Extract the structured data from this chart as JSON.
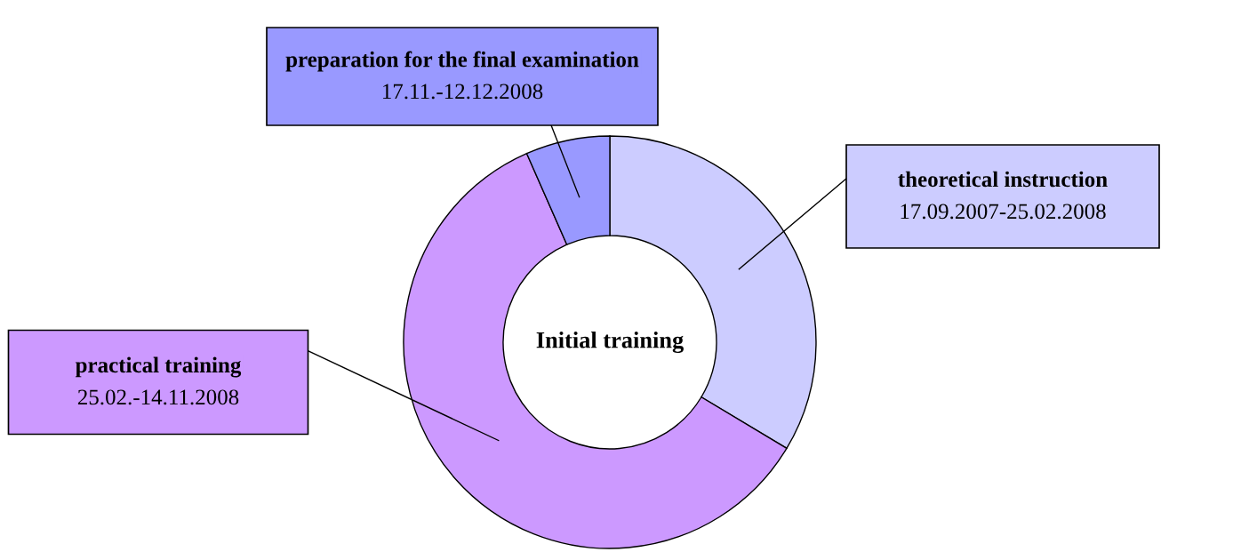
{
  "chart_data": {
    "type": "donut",
    "title": "Initial training",
    "categories": [
      "theoretical instruction",
      "practical training",
      "preparation for the final examination"
    ],
    "values": [
      33.6,
      59.8,
      6.6
    ],
    "colors": [
      "#ccccff",
      "#cc99ff",
      "#9999ff"
    ],
    "annotations": [
      "17.09.2007-25.02.2008",
      "25.02.-14.11.2008",
      "17.11.-12.12.2008"
    ],
    "legend": false
  }
}
